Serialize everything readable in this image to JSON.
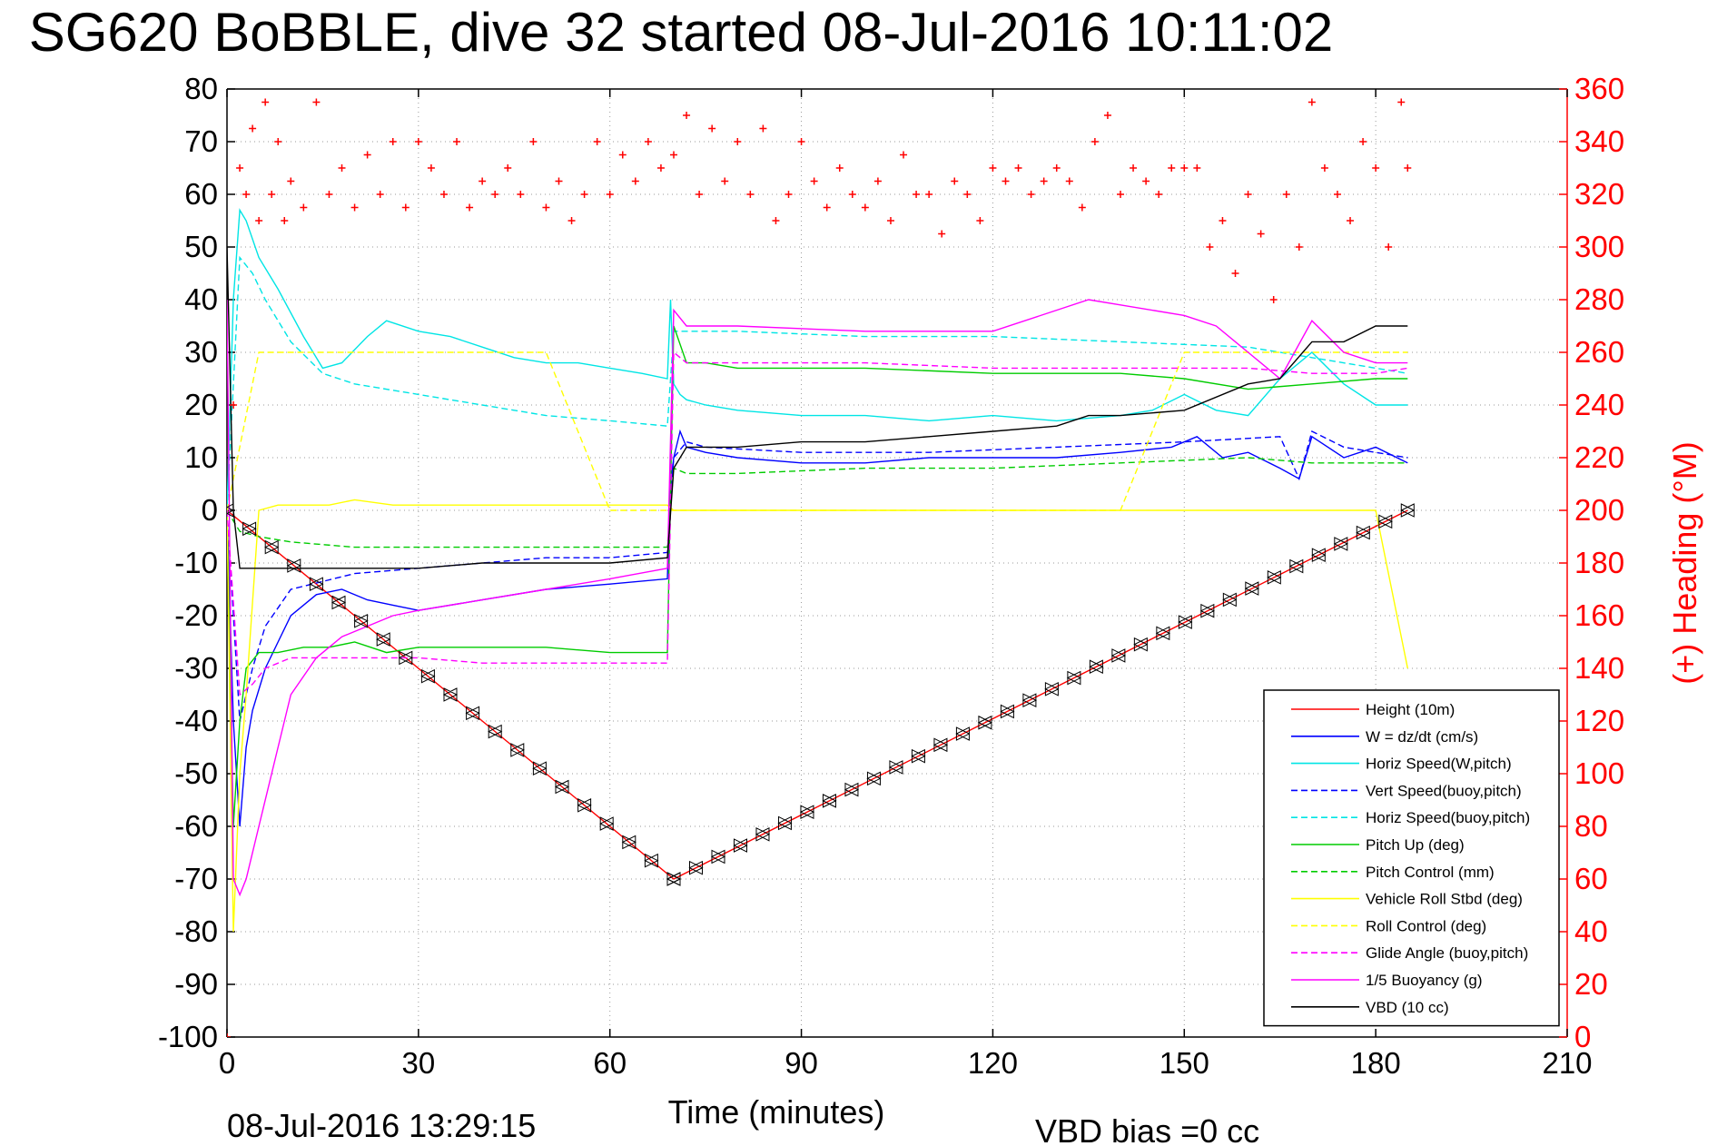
{
  "chart_data": {
    "type": "line",
    "title": "SG620 BoBBLE, dive 32 started 08-Jul-2016 10:11:02",
    "xlabel": "Time (minutes)",
    "ylabel_right": "(+) Heading (°M)",
    "xlim": [
      0,
      210
    ],
    "ylim_left": [
      -100,
      80
    ],
    "ylim_right": [
      0,
      360
    ],
    "x_ticks": [
      0,
      30,
      60,
      90,
      120,
      150,
      180,
      210
    ],
    "y_left_ticks": [
      80,
      70,
      60,
      50,
      40,
      30,
      20,
      10,
      0,
      -10,
      -20,
      -30,
      -40,
      -50,
      -60,
      -70,
      -80,
      -90,
      -100
    ],
    "y_right_ticks": [
      360,
      340,
      320,
      300,
      280,
      260,
      240,
      220,
      200,
      180,
      160,
      140,
      120,
      100,
      80,
      60,
      40,
      20,
      0
    ],
    "grid": true,
    "legend_position": "bottom-right",
    "footer_left": "08-Jul-2016 13:29:15",
    "footer_right": "VBD bias =0 cc",
    "legend": [
      {
        "label": "Height (10m)",
        "color": "#ff0000",
        "dash": "solid"
      },
      {
        "label": "W = dz/dt (cm/s)",
        "color": "#0000ff",
        "dash": "solid"
      },
      {
        "label": "Horiz Speed(W,pitch)",
        "color": "#00e5e5",
        "dash": "solid"
      },
      {
        "label": "Vert Speed(buoy,pitch)",
        "color": "#0000ff",
        "dash": "dashed"
      },
      {
        "label": "Horiz Speed(buoy,pitch)",
        "color": "#00e5e5",
        "dash": "dashed"
      },
      {
        "label": "Pitch Up (deg)",
        "color": "#00cc00",
        "dash": "solid"
      },
      {
        "label": "Pitch Control (mm)",
        "color": "#00cc00",
        "dash": "dashed"
      },
      {
        "label": "Vehicle Roll Stbd (deg)",
        "color": "#ffff00",
        "dash": "solid"
      },
      {
        "label": "Roll Control (deg)",
        "color": "#ffff00",
        "dash": "dashed"
      },
      {
        "label": "Glide Angle (buoy,pitch)",
        "color": "#ff00ff",
        "dash": "dashed"
      },
      {
        "label": "1/5 Buoyancy (g)",
        "color": "#ff00ff",
        "dash": "solid"
      },
      {
        "label": "VBD (10 cc)",
        "color": "#000000",
        "dash": "solid"
      }
    ],
    "series": [
      {
        "name": "Height (10m)",
        "axis": "left",
        "x": [
          0,
          70,
          185
        ],
        "y": [
          0,
          -70,
          0
        ]
      },
      {
        "name": "W = dz/dt (cm/s)",
        "axis": "left",
        "x": [
          0,
          1,
          2,
          3,
          4,
          6,
          8,
          10,
          14,
          18,
          22,
          26,
          30,
          40,
          50,
          60,
          69,
          69.5,
          70,
          71,
          72,
          75,
          80,
          90,
          100,
          110,
          120,
          130,
          140,
          148,
          152,
          156,
          160,
          165,
          168,
          170,
          175,
          180,
          185
        ],
        "y": [
          0,
          -40,
          -60,
          -45,
          -38,
          -30,
          -25,
          -20,
          -16,
          -15,
          -17,
          -18,
          -19,
          -17,
          -15,
          -14,
          -13,
          5,
          10,
          15,
          12,
          11,
          10,
          9,
          9,
          10,
          10,
          10,
          11,
          12,
          14,
          10,
          11,
          8,
          6,
          14,
          10,
          12,
          9
        ]
      },
      {
        "name": "Horiz Speed(W,pitch)",
        "axis": "left",
        "x": [
          0,
          1,
          2,
          3,
          5,
          8,
          12,
          15,
          18,
          22,
          25,
          30,
          35,
          40,
          45,
          50,
          55,
          60,
          65,
          69,
          69.5,
          70,
          71,
          72,
          75,
          80,
          90,
          100,
          110,
          120,
          130,
          140,
          145,
          150,
          155,
          160,
          165,
          170,
          175,
          180,
          185
        ],
        "y": [
          0,
          40,
          57,
          55,
          48,
          42,
          33,
          27,
          28,
          33,
          36,
          34,
          33,
          31,
          29,
          28,
          28,
          27,
          26,
          25,
          40,
          24,
          22,
          21,
          20,
          19,
          18,
          18,
          17,
          18,
          17,
          18,
          19,
          22,
          19,
          18,
          25,
          30,
          24,
          20,
          20
        ]
      },
      {
        "name": "Vert Speed(buoy,pitch)",
        "axis": "left",
        "x": [
          0,
          2,
          4,
          6,
          10,
          20,
          30,
          40,
          50,
          60,
          69,
          70,
          72,
          75,
          90,
          110,
          130,
          150,
          165,
          168,
          170,
          175,
          180,
          185
        ],
        "y": [
          0,
          -40,
          -30,
          -22,
          -15,
          -12,
          -11,
          -10,
          -9,
          -9,
          -8,
          10,
          13,
          12,
          11,
          11,
          12,
          13,
          14,
          6,
          15,
          12,
          11,
          10
        ]
      },
      {
        "name": "Horiz Speed(buoy,pitch)",
        "axis": "left",
        "x": [
          0,
          2,
          4,
          6,
          10,
          15,
          20,
          30,
          40,
          50,
          60,
          69,
          70,
          72,
          80,
          100,
          120,
          140,
          160,
          170,
          180,
          185
        ],
        "y": [
          0,
          48,
          45,
          40,
          32,
          26,
          24,
          22,
          20,
          18,
          17,
          16,
          34,
          34,
          34,
          33,
          33,
          32,
          31,
          29,
          27,
          26
        ]
      },
      {
        "name": "Pitch Up (deg)",
        "axis": "left",
        "x": [
          0,
          1,
          2,
          3,
          5,
          8,
          12,
          16,
          20,
          25,
          30,
          40,
          50,
          60,
          69,
          70,
          72,
          75,
          80,
          100,
          120,
          140,
          150,
          160,
          170,
          180,
          185
        ],
        "y": [
          0,
          -60,
          -40,
          -30,
          -27,
          -27,
          -26,
          -26,
          -25,
          -27,
          -26,
          -26,
          -26,
          -27,
          -27,
          35,
          28,
          28,
          27,
          27,
          26,
          26,
          25,
          23,
          24,
          25,
          25
        ]
      },
      {
        "name": "Pitch Control (mm)",
        "axis": "left",
        "x": [
          0,
          1,
          2,
          5,
          10,
          20,
          30,
          40,
          50,
          60,
          69,
          70,
          72,
          80,
          100,
          120,
          140,
          160,
          170,
          180,
          185
        ],
        "y": [
          0,
          -2,
          -4,
          -5,
          -6,
          -7,
          -7,
          -7,
          -7,
          -7,
          -7,
          8,
          7,
          7,
          8,
          8,
          9,
          10,
          9,
          9,
          9
        ]
      },
      {
        "name": "Vehicle Roll Stbd (deg)",
        "axis": "left",
        "x": [
          0,
          1,
          2,
          3,
          5,
          8,
          12,
          16,
          20,
          26,
          30,
          36,
          40,
          45,
          50,
          55,
          60,
          65,
          69,
          70,
          75,
          80,
          85,
          90,
          100,
          110,
          120,
          130,
          140,
          150,
          160,
          165,
          170,
          175,
          180,
          185
        ],
        "y": [
          0,
          -80,
          -50,
          -35,
          0,
          1,
          1,
          1,
          2,
          1,
          1,
          1,
          1,
          1,
          1,
          1,
          1,
          1,
          1,
          0,
          0,
          0,
          0,
          0,
          0,
          0,
          0,
          0,
          0,
          0,
          0,
          0,
          0,
          0,
          0,
          -30
        ]
      },
      {
        "name": "Roll Control (deg)",
        "axis": "left",
        "x": [
          0,
          5,
          10,
          20,
          30,
          40,
          50,
          60,
          70,
          80,
          90,
          100,
          110,
          120,
          130,
          140,
          150,
          160,
          170,
          180,
          185
        ],
        "y": [
          0,
          30,
          30,
          30,
          30,
          30,
          30,
          0,
          0,
          0,
          0,
          0,
          0,
          0,
          0,
          0,
          30,
          30,
          30,
          30,
          30
        ]
      },
      {
        "name": "Glide Angle (buoy,pitch)",
        "axis": "left",
        "x": [
          0,
          2,
          4,
          6,
          10,
          15,
          20,
          30,
          40,
          50,
          60,
          69,
          70,
          72,
          80,
          100,
          120,
          140,
          160,
          170,
          180,
          185
        ],
        "y": [
          0,
          -35,
          -33,
          -30,
          -28,
          -28,
          -28,
          -28,
          -29,
          -29,
          -29,
          -29,
          30,
          28,
          28,
          28,
          27,
          27,
          27,
          26,
          26,
          27
        ]
      },
      {
        "name": "1/5 Buoyancy (g)",
        "axis": "left",
        "x": [
          0,
          1,
          2,
          3,
          5,
          8,
          10,
          14,
          18,
          22,
          26,
          30,
          40,
          50,
          60,
          69,
          70,
          72,
          80,
          100,
          120,
          135,
          140,
          150,
          155,
          160,
          165,
          170,
          175,
          180,
          185
        ],
        "y": [
          40,
          -70,
          -73,
          -70,
          -60,
          -45,
          -35,
          -28,
          -24,
          -22,
          -20,
          -19,
          -17,
          -15,
          -13,
          -11,
          38,
          35,
          35,
          34,
          34,
          40,
          39,
          37,
          35,
          30,
          25,
          36,
          30,
          28,
          28
        ]
      },
      {
        "name": "VBD (10 cc)",
        "axis": "left",
        "x": [
          0,
          1,
          2,
          5,
          10,
          20,
          30,
          40,
          50,
          60,
          69,
          70,
          72,
          75,
          80,
          90,
          100,
          110,
          120,
          130,
          135,
          140,
          150,
          160,
          165,
          170,
          175,
          180,
          185
        ],
        "y": [
          50,
          0,
          -11,
          -11,
          -11,
          -11,
          -11,
          -10,
          -10,
          -10,
          -9,
          8,
          12,
          12,
          12,
          13,
          13,
          14,
          15,
          16,
          18,
          18,
          19,
          24,
          25,
          32,
          32,
          35,
          35
        ]
      },
      {
        "name": "(+) Heading (°M)",
        "axis": "right",
        "marker": "+",
        "x": [
          0,
          1,
          2,
          3,
          4,
          5,
          6,
          7,
          8,
          9,
          10,
          12,
          14,
          16,
          18,
          20,
          22,
          24,
          26,
          28,
          30,
          32,
          34,
          36,
          38,
          40,
          42,
          44,
          46,
          48,
          50,
          52,
          54,
          56,
          58,
          60,
          62,
          64,
          66,
          68,
          70,
          72,
          74,
          76,
          78,
          80,
          82,
          84,
          86,
          88,
          90,
          92,
          94,
          96,
          98,
          100,
          102,
          104,
          106,
          108,
          110,
          112,
          114,
          116,
          118,
          120,
          122,
          124,
          126,
          128,
          130,
          132,
          134,
          136,
          138,
          140,
          142,
          144,
          146,
          148,
          150,
          152,
          154,
          156,
          158,
          160,
          162,
          164,
          166,
          168,
          170,
          172,
          174,
          176,
          178,
          180,
          182,
          184,
          185
        ],
        "y": [
          0,
          240,
          330,
          320,
          345,
          310,
          355,
          320,
          340,
          310,
          325,
          315,
          355,
          320,
          330,
          315,
          335,
          320,
          340,
          315,
          340,
          330,
          320,
          340,
          315,
          325,
          320,
          330,
          320,
          340,
          315,
          325,
          310,
          320,
          340,
          320,
          335,
          325,
          340,
          330,
          335,
          350,
          320,
          345,
          325,
          340,
          320,
          345,
          310,
          320,
          340,
          325,
          315,
          330,
          320,
          315,
          325,
          310,
          335,
          320,
          320,
          305,
          325,
          320,
          310,
          330,
          325,
          330,
          320,
          325,
          330,
          325,
          315,
          340,
          350,
          320,
          330,
          325,
          320,
          330,
          330,
          330,
          300,
          310,
          290,
          320,
          305,
          280,
          320,
          300,
          355,
          330,
          320,
          310,
          340,
          330,
          300,
          355,
          330
        ]
      }
    ]
  }
}
